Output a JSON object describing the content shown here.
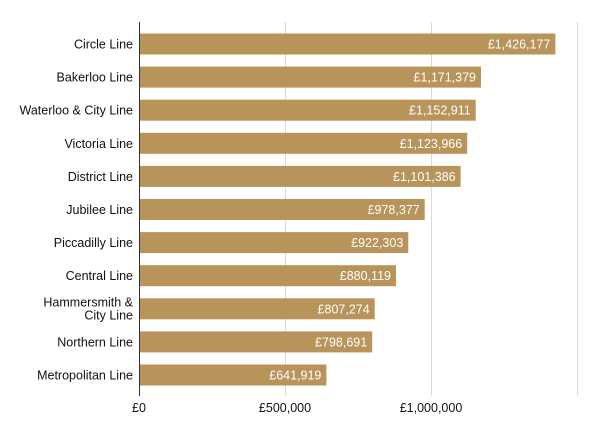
{
  "chart_data": {
    "type": "bar",
    "orientation": "horizontal",
    "categories": [
      "Circle Line",
      "Bakerloo Line",
      "Waterloo & City Line",
      "Victoria Line",
      "District Line",
      "Jubilee Line",
      "Piccadilly Line",
      "Central Line",
      "Hammersmith & City Line",
      "Northern Line",
      "Metropolitan Line"
    ],
    "values": [
      1426177,
      1171379,
      1152911,
      1123966,
      1101386,
      978377,
      922303,
      880119,
      807274,
      798691,
      641919
    ],
    "value_labels": [
      "£1,426,177",
      "£1,171,379",
      "£1,152,911",
      "£1,123,966",
      "£1,101,386",
      "£978,377",
      "£922,303",
      "£880,119",
      "£807,274",
      "£798,691",
      "£641,919"
    ],
    "x_ticks": [
      0,
      500000,
      1000000,
      1500000
    ],
    "x_tick_labels": [
      "£0",
      "£500,000",
      "£1,000,000",
      ""
    ],
    "xlim": [
      0,
      1500000
    ],
    "title": "",
    "xlabel": "",
    "ylabel": "",
    "grid": true,
    "legend": "none",
    "bar_color": "#B8935A",
    "grid_color": "#d9d9d9",
    "axis_color": "#333333"
  }
}
